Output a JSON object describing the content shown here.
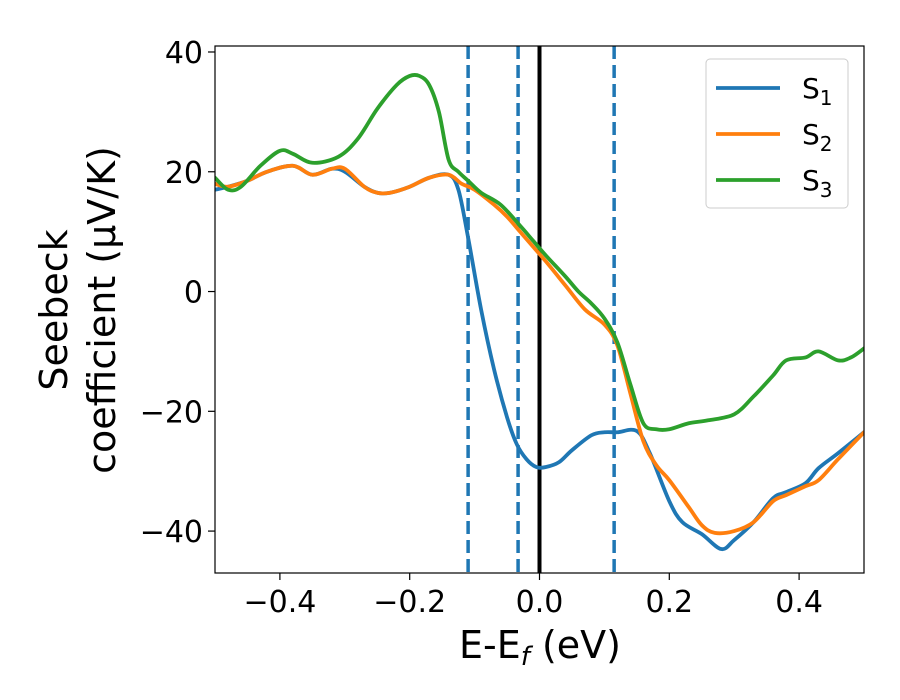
{
  "chart_data": {
    "type": "line",
    "title": "",
    "xlabel": {
      "main": "E-E",
      "sub": "f",
      "rest": " (eV)"
    },
    "ylabel": {
      "line1": "Seebeck",
      "line2": "coefficient  (μV/K)"
    },
    "xlim": [
      -0.5,
      0.5
    ],
    "ylim": [
      -47,
      41
    ],
    "xticks": [
      -0.4,
      -0.2,
      0.0,
      0.2,
      0.4
    ],
    "xtick_labels": [
      "−0.4",
      "−0.2",
      "0.0",
      "0.2",
      "0.4"
    ],
    "yticks": [
      -40,
      -20,
      0,
      20,
      40
    ],
    "ytick_labels": [
      "−40",
      "−20",
      "0",
      "20",
      "40"
    ],
    "grid": false,
    "legend_position": "top-right",
    "vlines": [
      {
        "x": -0.11,
        "style": "dashed",
        "color": "#1f77b4"
      },
      {
        "x": -0.033,
        "style": "dashed",
        "color": "#1f77b4"
      },
      {
        "x": 0.0,
        "style": "solid",
        "color": "#000000"
      },
      {
        "x": 0.115,
        "style": "dashed",
        "color": "#1f77b4"
      }
    ],
    "series": [
      {
        "name": "S",
        "sub": "1",
        "color": "#1f77b4",
        "x": [
          -0.5,
          -0.48,
          -0.45,
          -0.42,
          -0.38,
          -0.35,
          -0.32,
          -0.3,
          -0.27,
          -0.25,
          -0.23,
          -0.2,
          -0.17,
          -0.14,
          -0.125,
          -0.11,
          -0.09,
          -0.07,
          -0.05,
          -0.035,
          -0.02,
          -0.005,
          0.01,
          0.03,
          0.05,
          0.08,
          0.1,
          0.12,
          0.15,
          0.17,
          0.2,
          0.22,
          0.25,
          0.28,
          0.3,
          0.33,
          0.36,
          0.38,
          0.41,
          0.43,
          0.46,
          0.5
        ],
        "values": [
          17,
          17.5,
          18.5,
          20,
          21,
          19.5,
          20.5,
          20,
          17.5,
          16.5,
          16.5,
          17.5,
          19,
          19.5,
          17,
          9,
          -3,
          -13,
          -21,
          -25.5,
          -28,
          -29.3,
          -29.3,
          -28.5,
          -26.5,
          -24,
          -23.5,
          -23.5,
          -23.3,
          -27,
          -35,
          -38.5,
          -40.5,
          -43,
          -41.5,
          -38.5,
          -34.5,
          -33.5,
          -32,
          -29.5,
          -27,
          -23.5
        ]
      },
      {
        "name": "S",
        "sub": "2",
        "color": "#ff7f0e",
        "x": [
          -0.5,
          -0.48,
          -0.45,
          -0.42,
          -0.38,
          -0.35,
          -0.32,
          -0.3,
          -0.27,
          -0.25,
          -0.23,
          -0.2,
          -0.17,
          -0.14,
          -0.12,
          -0.1,
          -0.07,
          -0.05,
          -0.03,
          -0.01,
          0.01,
          0.04,
          0.07,
          0.1,
          0.12,
          0.14,
          0.16,
          0.18,
          0.2,
          0.23,
          0.25,
          0.27,
          0.3,
          0.33,
          0.36,
          0.38,
          0.41,
          0.43,
          0.46,
          0.5
        ],
        "values": [
          18,
          17.5,
          18.5,
          20,
          21,
          19.5,
          20.5,
          20.5,
          17.5,
          16.5,
          16.5,
          17.5,
          19,
          19.5,
          18,
          17,
          14.5,
          12.5,
          10,
          7.5,
          5,
          1,
          -3,
          -5.5,
          -9,
          -17,
          -25,
          -29,
          -31.5,
          -36,
          -39,
          -40.3,
          -40,
          -38.5,
          -35,
          -34,
          -32.5,
          -31.5,
          -28,
          -23.5
        ]
      },
      {
        "name": "S",
        "sub": "3",
        "color": "#2ca02c",
        "x": [
          -0.5,
          -0.48,
          -0.46,
          -0.43,
          -0.4,
          -0.38,
          -0.35,
          -0.31,
          -0.28,
          -0.25,
          -0.22,
          -0.2,
          -0.185,
          -0.17,
          -0.155,
          -0.14,
          -0.125,
          -0.11,
          -0.09,
          -0.06,
          -0.03,
          -0.01,
          0.01,
          0.04,
          0.06,
          0.08,
          0.1,
          0.12,
          0.14,
          0.16,
          0.18,
          0.2,
          0.23,
          0.26,
          0.3,
          0.33,
          0.36,
          0.38,
          0.41,
          0.43,
          0.46,
          0.48,
          0.5
        ],
        "values": [
          19,
          17,
          17.5,
          21,
          23.5,
          23,
          21.5,
          22.5,
          25.5,
          30.5,
          34.5,
          36,
          36,
          34.5,
          30,
          22,
          20,
          18.5,
          16.5,
          14.5,
          11,
          8.5,
          6,
          2.5,
          0,
          -2,
          -4.5,
          -8.5,
          -15.5,
          -22,
          -23,
          -23,
          -22,
          -21.5,
          -20.5,
          -17.5,
          -14,
          -11.5,
          -11,
          -10,
          -11.5,
          -11,
          -9.5
        ]
      }
    ]
  }
}
